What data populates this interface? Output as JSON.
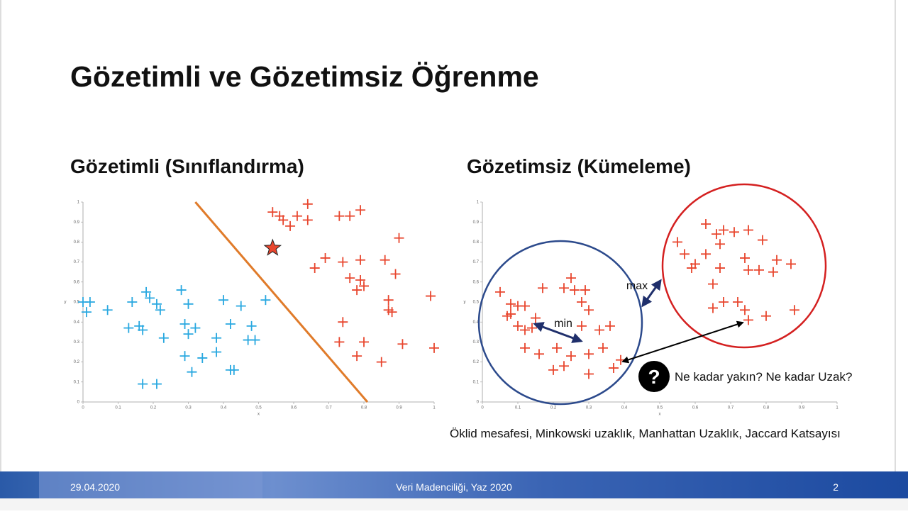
{
  "title": "Gözetimli ve Gözetimsiz Öğrenme",
  "left": {
    "heading": "Gözetimli (Sınıflandırma)",
    "chart": {
      "type": "scatter",
      "x_label": "x",
      "y_label": "y",
      "xlim": [
        0,
        1
      ],
      "ylim": [
        0,
        1
      ],
      "xticks": [
        0,
        0.1,
        0.2,
        0.3,
        0.4,
        0.5,
        0.6,
        0.7,
        0.8,
        0.9,
        1
      ],
      "yticks": [
        0,
        0.1,
        0.2,
        0.3,
        0.4,
        0.5,
        0.6,
        0.7,
        0.8,
        0.9,
        1
      ],
      "series": [
        {
          "color": "#29a8e0",
          "x": [
            0.0,
            0.02,
            0.01,
            0.07,
            0.14,
            0.18,
            0.19,
            0.21,
            0.22,
            0.28,
            0.3,
            0.13,
            0.16,
            0.17,
            0.23,
            0.29,
            0.3,
            0.32,
            0.38,
            0.4,
            0.45,
            0.48,
            0.47,
            0.49,
            0.42,
            0.29,
            0.34,
            0.31,
            0.38,
            0.42,
            0.43,
            0.17,
            0.21,
            0.52
          ],
          "y": [
            0.5,
            0.5,
            0.45,
            0.46,
            0.5,
            0.55,
            0.52,
            0.49,
            0.46,
            0.56,
            0.49,
            0.37,
            0.38,
            0.36,
            0.32,
            0.39,
            0.34,
            0.37,
            0.32,
            0.51,
            0.48,
            0.38,
            0.31,
            0.31,
            0.39,
            0.23,
            0.22,
            0.15,
            0.25,
            0.16,
            0.16,
            0.09,
            0.09,
            0.51
          ]
        },
        {
          "color": "#e8462e",
          "x": [
            0.54,
            0.56,
            0.59,
            0.61,
            0.64,
            0.64,
            0.57,
            0.73,
            0.76,
            0.79,
            0.66,
            0.69,
            0.74,
            0.79,
            0.86,
            0.9,
            0.89,
            0.76,
            0.79,
            0.8,
            0.78,
            0.87,
            0.87,
            0.88,
            0.99,
            0.74,
            0.73,
            0.8,
            0.91,
            1.0,
            0.78,
            0.85
          ],
          "y": [
            0.95,
            0.93,
            0.88,
            0.93,
            0.99,
            0.91,
            0.91,
            0.93,
            0.93,
            0.96,
            0.67,
            0.72,
            0.7,
            0.71,
            0.71,
            0.82,
            0.64,
            0.62,
            0.61,
            0.58,
            0.56,
            0.51,
            0.46,
            0.45,
            0.53,
            0.4,
            0.3,
            0.3,
            0.29,
            0.27,
            0.23,
            0.2
          ]
        }
      ],
      "query_point": {
        "color": "#e8462e",
        "x": 0.54,
        "y": 0.77
      },
      "boundary": {
        "color": "#e07b2a",
        "x": [
          0.32,
          0.81
        ],
        "y": [
          1.0,
          0.0
        ]
      }
    }
  },
  "right": {
    "heading": "Gözetimsiz (Kümeleme)",
    "chart": {
      "type": "scatter",
      "x_label": "x",
      "y_label": "y",
      "xlim": [
        0,
        1
      ],
      "ylim": [
        0,
        1
      ],
      "xticks": [
        0,
        0.1,
        0.2,
        0.3,
        0.4,
        0.5,
        0.6,
        0.7,
        0.8,
        0.9,
        1
      ],
      "yticks": [
        0,
        0.1,
        0.2,
        0.3,
        0.4,
        0.5,
        0.6,
        0.7,
        0.8,
        0.9,
        1
      ],
      "series": [
        {
          "color": "#e8462e",
          "x": [
            0.05,
            0.08,
            0.08,
            0.1,
            0.12,
            0.07,
            0.1,
            0.12,
            0.14,
            0.15,
            0.17,
            0.23,
            0.25,
            0.26,
            0.29,
            0.28,
            0.3,
            0.28,
            0.33,
            0.36,
            0.12,
            0.16,
            0.21,
            0.25,
            0.3,
            0.34,
            0.2,
            0.23,
            0.3,
            0.37,
            0.39,
            0.55,
            0.57,
            0.6,
            0.63,
            0.66,
            0.68,
            0.71,
            0.75,
            0.67,
            0.79,
            0.74,
            0.78,
            0.83,
            0.87,
            0.65,
            0.67,
            0.75,
            0.82,
            0.65,
            0.68,
            0.72,
            0.74,
            0.75,
            0.8,
            0.88,
            0.59,
            0.63
          ],
          "y": [
            0.55,
            0.49,
            0.44,
            0.48,
            0.48,
            0.43,
            0.38,
            0.36,
            0.37,
            0.42,
            0.57,
            0.57,
            0.62,
            0.56,
            0.56,
            0.5,
            0.46,
            0.38,
            0.36,
            0.38,
            0.27,
            0.24,
            0.27,
            0.23,
            0.24,
            0.27,
            0.16,
            0.18,
            0.14,
            0.17,
            0.21,
            0.8,
            0.74,
            0.69,
            0.74,
            0.84,
            0.86,
            0.85,
            0.86,
            0.79,
            0.81,
            0.72,
            0.66,
            0.71,
            0.69,
            0.59,
            0.67,
            0.66,
            0.65,
            0.47,
            0.5,
            0.5,
            0.46,
            0.41,
            0.43,
            0.46,
            0.67,
            0.89
          ]
        }
      ]
    },
    "annotations": {
      "max": "max",
      "min": "min",
      "question_icon": "?",
      "question": "Ne kadar yakın? Ne kadar Uzak?"
    },
    "caption": "Öklid mesafesi, Minkowski uzaklık, Manhattan Uzaklık, Jaccard Katsayısı"
  },
  "footer": {
    "date": "29.04.2020",
    "course": "Veri Madenciliği, Yaz 2020",
    "page": "2"
  }
}
